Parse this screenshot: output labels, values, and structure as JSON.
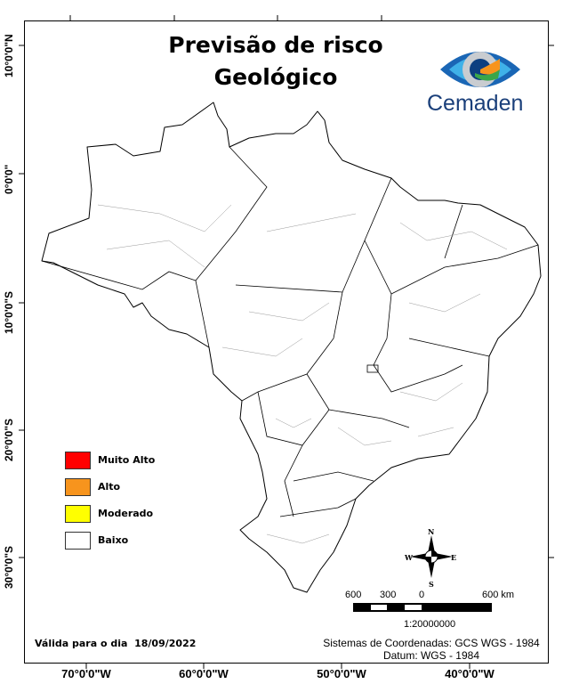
{
  "title": {
    "line1": "Previsão de risco",
    "line2": "Geológico"
  },
  "logo": {
    "text": "Cemaden"
  },
  "axes": {
    "latitude_labels": [
      "10°0'0\"N",
      "0°0'0\"",
      "10°0'0\"S",
      "20°0'0\"S",
      "30°0'0\"S"
    ],
    "longitude_labels": [
      "70°0'0\"W",
      "60°0'0\"W",
      "50°0'0\"W",
      "40°0'0\"W"
    ]
  },
  "legend": {
    "items": [
      {
        "label": "Muito Alto",
        "color": "#ff0000"
      },
      {
        "label": "Alto",
        "color": "#f7941d"
      },
      {
        "label": "Moderado",
        "color": "#ffff00"
      },
      {
        "label": "Baixo",
        "color": "#ffffff"
      }
    ]
  },
  "map": {
    "risk_level_shown": "Baixo",
    "fill_color": "#ffffff"
  },
  "compass": {
    "n": "N",
    "s": "S",
    "e": "E",
    "w": "W"
  },
  "scale_bar": {
    "labels": [
      "600",
      "300",
      "0",
      "600 km"
    ],
    "ratio": "1:20000000"
  },
  "footer": {
    "valid_label": "Válida para o dia",
    "valid_date": "18/09/2022",
    "coord_system": "Sistemas de Coordenadas: GCS WGS - 1984",
    "datum": "Datum: WGS - 1984"
  }
}
